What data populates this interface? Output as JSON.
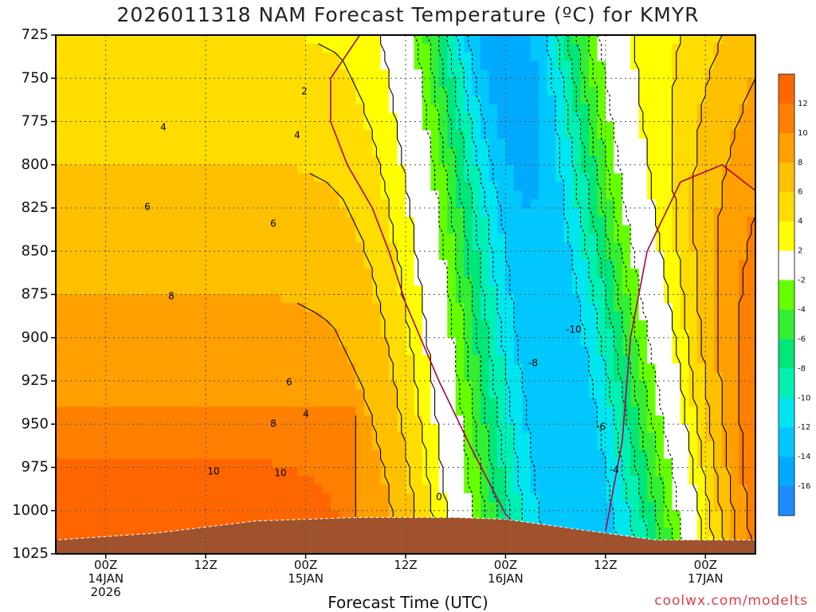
{
  "title": "2026011318 NAM Forecast Temperature (ºC) for KMYR",
  "xlabel": "Forecast Time (UTC)",
  "credit": "coolwx.com/modelts",
  "chart_data": {
    "type": "heatmap",
    "title": "2026011318 NAM Forecast Temperature (ºC) for KMYR",
    "xlabel": "Forecast Time (UTC)",
    "ylabel": "",
    "x_ticks": [
      {
        "hour": 6,
        "lines": [
          "00Z",
          "14JAN",
          "2026"
        ]
      },
      {
        "hour": 18,
        "lines": [
          "12Z"
        ]
      },
      {
        "hour": 30,
        "lines": [
          "00Z",
          "15JAN"
        ]
      },
      {
        "hour": 42,
        "lines": [
          "12Z"
        ]
      },
      {
        "hour": 54,
        "lines": [
          "00Z",
          "16JAN"
        ]
      },
      {
        "hour": 66,
        "lines": [
          "12Z"
        ]
      },
      {
        "hour": 78,
        "lines": [
          "00Z",
          "17JAN"
        ]
      }
    ],
    "x_range_hours": [
      0,
      84
    ],
    "y_ticks": [
      725,
      750,
      775,
      800,
      825,
      850,
      875,
      900,
      925,
      950,
      975,
      1000,
      1025
    ],
    "y_range": [
      725,
      1025
    ],
    "grid": true,
    "colorbar": {
      "levels": [
        -16,
        -14,
        -12,
        -10,
        -8,
        -6,
        -4,
        -2,
        2,
        4,
        6,
        8,
        10,
        12
      ],
      "colors": [
        "#1a8cff",
        "#00aaff",
        "#00c8ff",
        "#00e6f0",
        "#00f0b4",
        "#00e678",
        "#33ee33",
        "#66ff00",
        "#ffffff",
        "#ffff00",
        "#ffdd00",
        "#ffc000",
        "#ff9f00",
        "#ff7f00",
        "#ff6600"
      ]
    },
    "contour_labels": [
      "2",
      "4",
      "4",
      "6",
      "6",
      "8",
      "6",
      "4",
      "8",
      "10",
      "10",
      "0",
      "-4",
      "-6",
      "-8",
      "-10"
    ],
    "series": [
      {
        "name": "0",
        "line_color": "#b0004a",
        "points": [
          [
            36.5,
            725
          ],
          [
            33,
            750
          ],
          [
            33,
            775
          ],
          [
            35,
            800
          ],
          [
            38,
            825
          ],
          [
            40,
            850
          ],
          [
            42,
            880
          ],
          [
            46,
            925
          ],
          [
            50,
            965
          ],
          [
            54,
            1002
          ],
          [
            56,
            1012
          ]
        ]
      },
      {
        "name": "0",
        "line_color": "#b0004a",
        "points": [
          [
            84,
            815
          ],
          [
            80,
            800
          ],
          [
            75,
            810
          ],
          [
            71,
            850
          ],
          [
            69,
            900
          ],
          [
            68,
            960
          ],
          [
            66,
            1012
          ]
        ]
      }
    ],
    "terrain": {
      "color": "#a0522d",
      "surface_pressure": [
        [
          0,
          1017
        ],
        [
          12,
          1013
        ],
        [
          24,
          1006
        ],
        [
          36,
          1004
        ],
        [
          48,
          1004
        ],
        [
          54,
          1005
        ],
        [
          60,
          1009
        ],
        [
          66,
          1013
        ],
        [
          72,
          1017
        ],
        [
          84,
          1017
        ]
      ]
    }
  }
}
